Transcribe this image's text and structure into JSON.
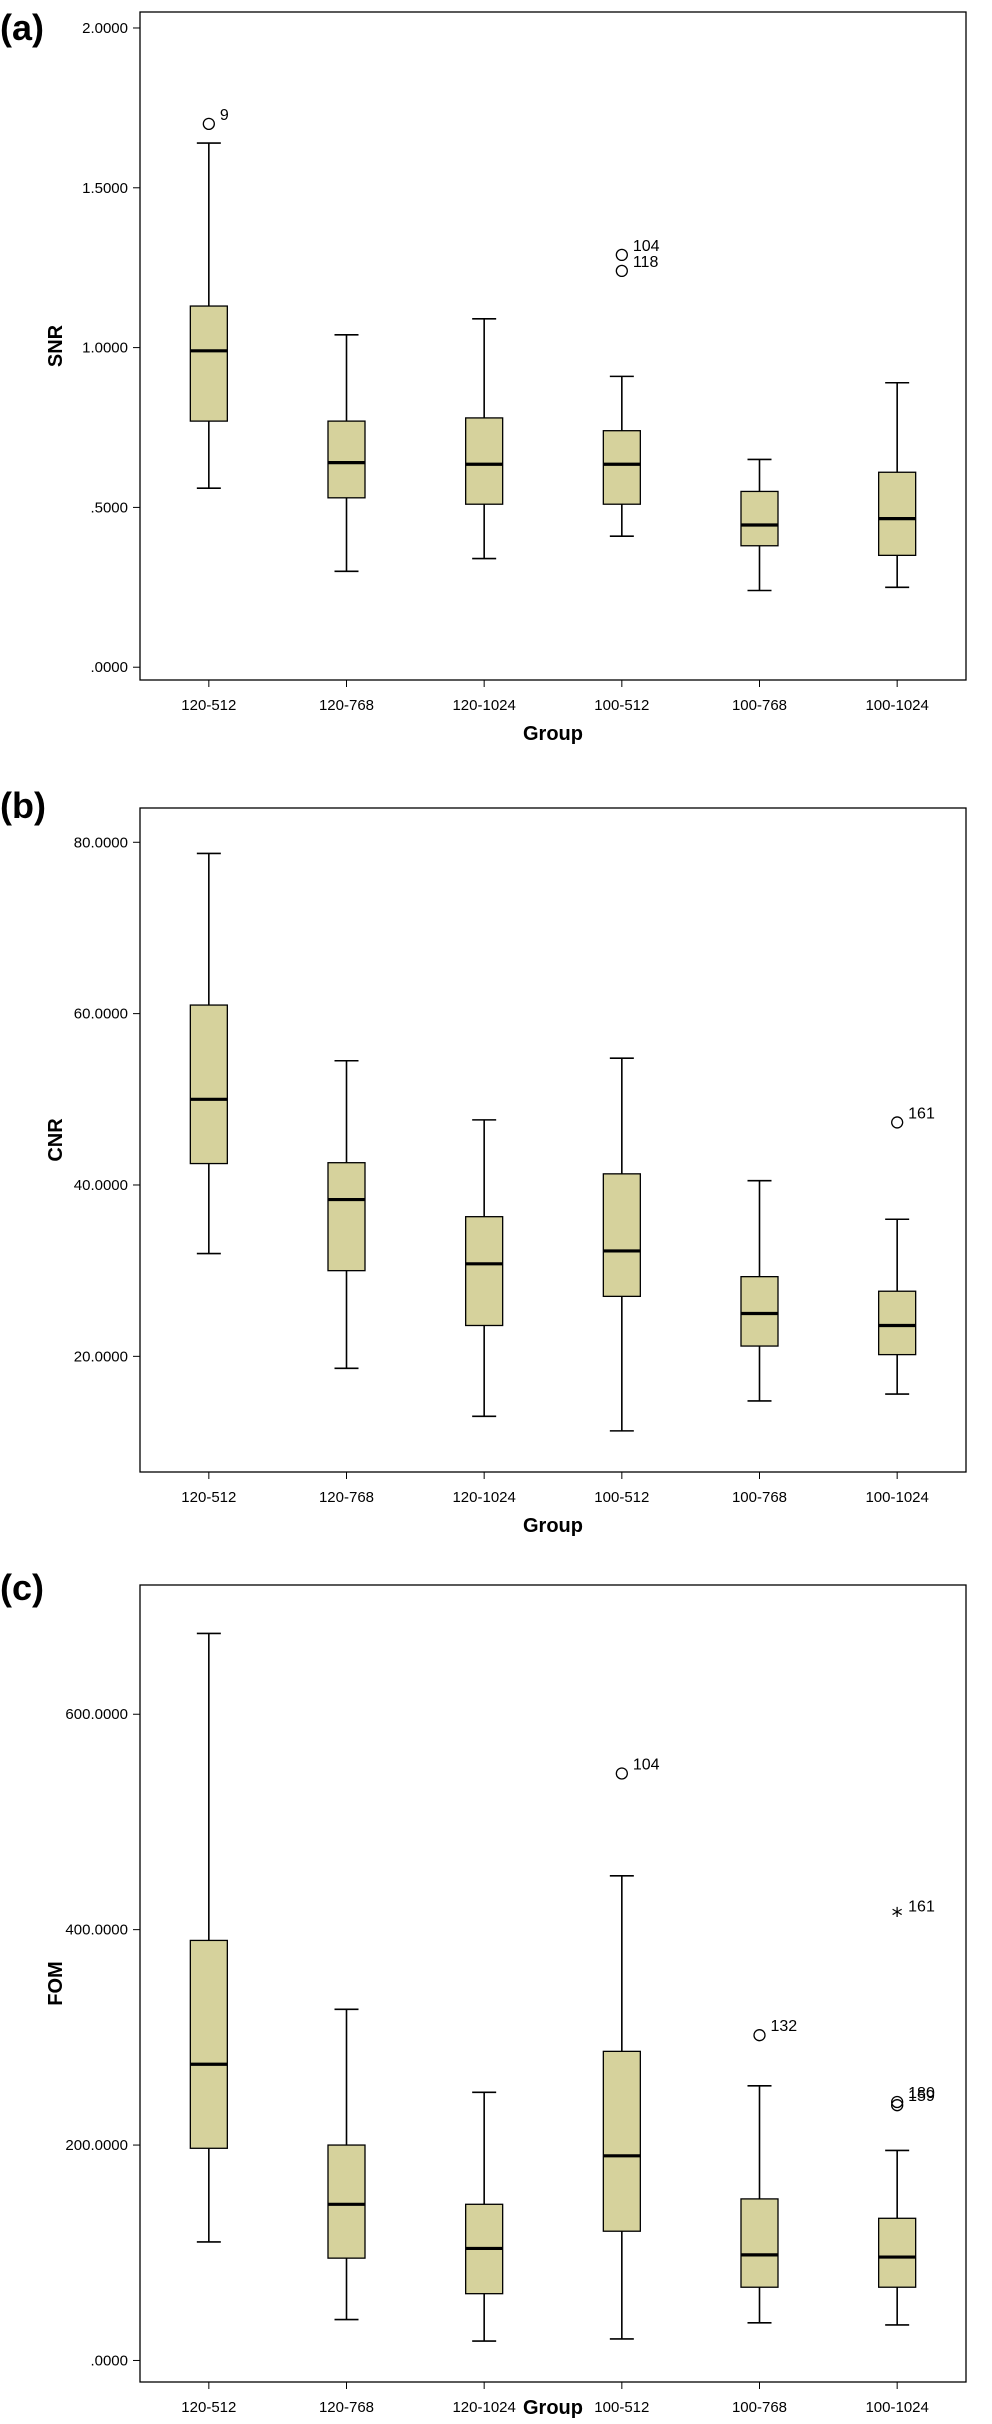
{
  "chart_data": [
    {
      "type": "boxplot",
      "panel_label": "(a)",
      "xlabel": "Group",
      "ylabel": "SNR",
      "ylim": [
        -0.04,
        2.05
      ],
      "yticks": [
        0,
        0.5,
        1,
        1.5,
        2
      ],
      "ytick_labels": [
        ".0000",
        ".5000",
        "1.0000",
        "1.5000",
        "2.0000"
      ],
      "categories": [
        "120-512",
        "120-768",
        "120-1024",
        "100-512",
        "100-768",
        "100-1024"
      ],
      "box_color": "#d6d29c",
      "boxes": [
        {
          "whisker_low": 0.56,
          "q1": 0.77,
          "median": 0.99,
          "q3": 1.13,
          "whisker_high": 1.64,
          "outliers": [
            {
              "value": 1.7,
              "label": "9",
              "marker": "circle"
            }
          ]
        },
        {
          "whisker_low": 0.3,
          "q1": 0.53,
          "median": 0.64,
          "q3": 0.77,
          "whisker_high": 1.04,
          "outliers": []
        },
        {
          "whisker_low": 0.34,
          "q1": 0.51,
          "median": 0.635,
          "q3": 0.78,
          "whisker_high": 1.09,
          "outliers": []
        },
        {
          "whisker_low": 0.41,
          "q1": 0.51,
          "median": 0.635,
          "q3": 0.74,
          "whisker_high": 0.91,
          "outliers": [
            {
              "value": 1.29,
              "label": "104",
              "marker": "circle"
            },
            {
              "value": 1.24,
              "label": "118",
              "marker": "circle"
            }
          ]
        },
        {
          "whisker_low": 0.24,
          "q1": 0.38,
          "median": 0.445,
          "q3": 0.55,
          "whisker_high": 0.65,
          "outliers": []
        },
        {
          "whisker_low": 0.25,
          "q1": 0.35,
          "median": 0.465,
          "q3": 0.61,
          "whisker_high": 0.89,
          "outliers": []
        }
      ]
    },
    {
      "type": "boxplot",
      "panel_label": "(b)",
      "xlabel": "Group",
      "ylabel": "CNR",
      "ylim": [
        6.5,
        84
      ],
      "yticks": [
        20,
        40,
        60,
        80
      ],
      "ytick_labels": [
        "20.0000",
        "40.0000",
        "60.0000",
        "80.0000"
      ],
      "categories": [
        "120-512",
        "120-768",
        "120-1024",
        "100-512",
        "100-768",
        "100-1024"
      ],
      "box_color": "#d6d29c",
      "boxes": [
        {
          "whisker_low": 32,
          "q1": 42.5,
          "median": 50,
          "q3": 61,
          "whisker_high": 78.7,
          "outliers": []
        },
        {
          "whisker_low": 18.6,
          "q1": 30,
          "median": 38.3,
          "q3": 42.6,
          "whisker_high": 54.5,
          "outliers": []
        },
        {
          "whisker_low": 13,
          "q1": 23.6,
          "median": 30.8,
          "q3": 36.3,
          "whisker_high": 47.6,
          "outliers": []
        },
        {
          "whisker_low": 11.3,
          "q1": 27,
          "median": 32.3,
          "q3": 41.3,
          "whisker_high": 54.8,
          "outliers": []
        },
        {
          "whisker_low": 14.8,
          "q1": 21.2,
          "median": 25,
          "q3": 29.3,
          "whisker_high": 40.5,
          "outliers": []
        },
        {
          "whisker_low": 15.6,
          "q1": 20.2,
          "median": 23.6,
          "q3": 27.6,
          "whisker_high": 36,
          "outliers": [
            {
              "value": 47.3,
              "label": "161",
              "marker": "circle"
            }
          ]
        }
      ]
    },
    {
      "type": "boxplot",
      "panel_label": "(c)",
      "xlabel": "Group",
      "ylabel": "FOM",
      "ylim": [
        -20,
        720
      ],
      "yticks": [
        0,
        200,
        400,
        600
      ],
      "ytick_labels": [
        ".0000",
        "200.0000",
        "400.0000",
        "600.0000"
      ],
      "categories": [
        "120-512",
        "120-768",
        "120-1024",
        "100-512",
        "100-768",
        "100-1024"
      ],
      "box_color": "#d6d29c",
      "boxes": [
        {
          "whisker_low": 110,
          "q1": 197,
          "median": 275,
          "q3": 390,
          "whisker_high": 675,
          "outliers": []
        },
        {
          "whisker_low": 38,
          "q1": 95,
          "median": 145,
          "q3": 200,
          "whisker_high": 326,
          "outliers": []
        },
        {
          "whisker_low": 18,
          "q1": 62,
          "median": 104,
          "q3": 145,
          "whisker_high": 249,
          "outliers": []
        },
        {
          "whisker_low": 20,
          "q1": 120,
          "median": 190,
          "q3": 287,
          "whisker_high": 450,
          "outliers": [
            {
              "value": 545,
              "label": "104",
              "marker": "circle"
            }
          ]
        },
        {
          "whisker_low": 35,
          "q1": 68,
          "median": 98,
          "q3": 150,
          "whisker_high": 255,
          "outliers": [
            {
              "value": 302,
              "label": "132",
              "marker": "circle"
            }
          ]
        },
        {
          "whisker_low": 33,
          "q1": 68,
          "median": 96,
          "q3": 132,
          "whisker_high": 195,
          "outliers": [
            {
              "value": 413,
              "label": "161",
              "marker": "star"
            },
            {
              "value": 240,
              "label": "180",
              "marker": "circle"
            },
            {
              "value": 237,
              "label": "159",
              "marker": "circle"
            }
          ]
        }
      ]
    }
  ]
}
